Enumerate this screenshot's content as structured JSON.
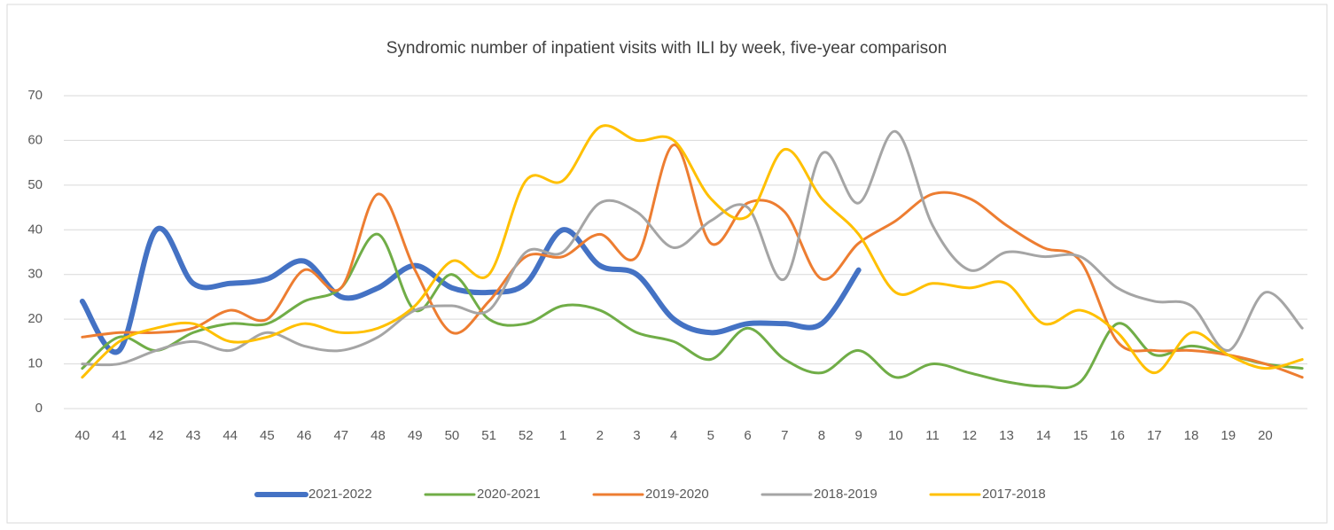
{
  "chart_data": {
    "type": "line",
    "title": "Syndromic number of inpatient visits with ILI by week, five-year comparison",
    "categories": [
      "40",
      "41",
      "42",
      "43",
      "44",
      "45",
      "46",
      "47",
      "48",
      "49",
      "50",
      "51",
      "52",
      "1",
      "2",
      "3",
      "4",
      "5",
      "6",
      "7",
      "8",
      "9",
      "10",
      "11",
      "12",
      "13",
      "14",
      "15",
      "16",
      "17",
      "18",
      "19",
      "20",
      null
    ],
    "ylim": [
      0,
      70
    ],
    "yticks": [
      0,
      10,
      20,
      30,
      40,
      50,
      60,
      70
    ],
    "grid": true,
    "legend": "bottom",
    "series": [
      {
        "name": "2021-2022",
        "color": "#4472c4",
        "values": [
          24,
          13,
          40,
          28,
          28,
          29,
          33,
          25,
          27,
          32,
          27,
          26,
          28,
          40,
          32,
          30,
          20,
          17,
          19,
          19,
          19,
          31,
          null,
          null,
          null,
          null,
          null,
          null,
          null,
          null,
          null,
          null,
          null,
          null
        ]
      },
      {
        "name": "2020-2021",
        "color": "#70ad47",
        "values": [
          9,
          16,
          13,
          17,
          19,
          19,
          24,
          27,
          39,
          22,
          30,
          20,
          19,
          23,
          22,
          17,
          15,
          11,
          18,
          11,
          8,
          13,
          7,
          10,
          8,
          6,
          5,
          6,
          19,
          12,
          14,
          12,
          10,
          9
        ]
      },
      {
        "name": "2019-2020",
        "color": "#ed7d31",
        "values": [
          16,
          17,
          17,
          18,
          22,
          20,
          31,
          27,
          48,
          31,
          17,
          24,
          34,
          34,
          39,
          34,
          59,
          37,
          46,
          44,
          29,
          37,
          42,
          48,
          47,
          41,
          36,
          33,
          15,
          13,
          13,
          12,
          10,
          7
        ]
      },
      {
        "name": "2018-2019",
        "color": "#a5a5a5",
        "values": [
          10,
          10,
          13,
          15,
          13,
          17,
          14,
          13,
          16,
          22,
          23,
          22,
          35,
          35,
          46,
          44,
          36,
          42,
          45,
          29,
          57,
          46,
          62,
          41,
          31,
          35,
          34,
          34,
          27,
          24,
          23,
          13,
          26,
          18
        ]
      },
      {
        "name": "2017-2018",
        "color": "#ffc000",
        "values": [
          7,
          15,
          18,
          19,
          15,
          16,
          19,
          17,
          18,
          23,
          33,
          30,
          51,
          51,
          63,
          60,
          60,
          47,
          43,
          58,
          47,
          39,
          26,
          28,
          27,
          28,
          19,
          22,
          17,
          8,
          17,
          12,
          9,
          11
        ]
      }
    ]
  }
}
